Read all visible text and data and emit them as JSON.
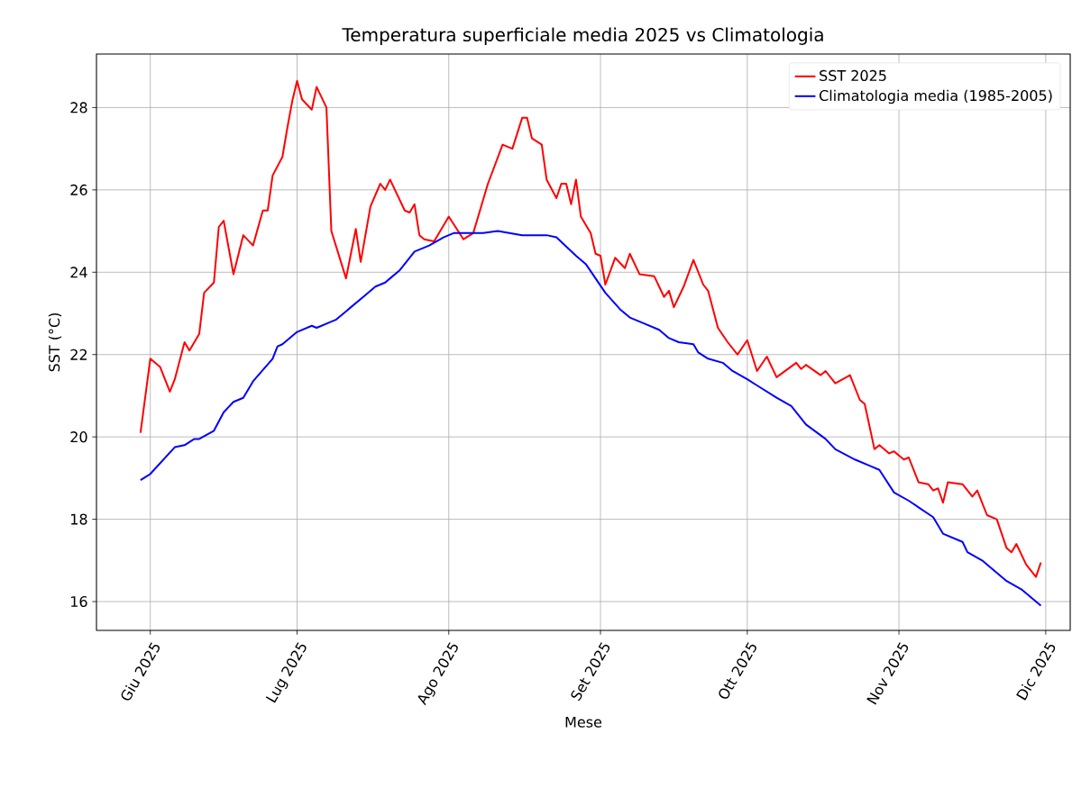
{
  "chart_data": {
    "type": "line",
    "title": "Temperatura superficiale media 2025 vs Climatologia",
    "xlabel": "Mese",
    "ylabel": "SST (°C)",
    "xlim": [
      "2025-05-21",
      "2025-12-06"
    ],
    "ylim": [
      15.3,
      29.3
    ],
    "xticks": [
      {
        "value": "2025-06-01",
        "label": "Giu 2025"
      },
      {
        "value": "2025-07-01",
        "label": "Lug 2025"
      },
      {
        "value": "2025-08-01",
        "label": "Ago 2025"
      },
      {
        "value": "2025-09-01",
        "label": "Set 2025"
      },
      {
        "value": "2025-10-01",
        "label": "Ott 2025"
      },
      {
        "value": "2025-11-01",
        "label": "Nov 2025"
      },
      {
        "value": "2025-12-01",
        "label": "Dic 2025"
      }
    ],
    "yticks": [
      16,
      18,
      20,
      22,
      24,
      26,
      28
    ],
    "grid": true,
    "legend": "top right",
    "series": [
      {
        "name": "SST 2025",
        "color": "#ff0000",
        "x": [
          "2025-05-30",
          "2025-06-01",
          "2025-06-03",
          "2025-06-05",
          "2025-06-06",
          "2025-06-08",
          "2025-06-09",
          "2025-06-11",
          "2025-06-12",
          "2025-06-14",
          "2025-06-15",
          "2025-06-16",
          "2025-06-18",
          "2025-06-20",
          "2025-06-22",
          "2025-06-24",
          "2025-06-25",
          "2025-06-26",
          "2025-06-28",
          "2025-06-29",
          "2025-06-30",
          "2025-07-01",
          "2025-07-02",
          "2025-07-04",
          "2025-07-05",
          "2025-07-07",
          "2025-07-08",
          "2025-07-11",
          "2025-07-13",
          "2025-07-14",
          "2025-07-16",
          "2025-07-18",
          "2025-07-19",
          "2025-07-20",
          "2025-07-23",
          "2025-07-24",
          "2025-07-25",
          "2025-07-26",
          "2025-07-27",
          "2025-07-29",
          "2025-08-01",
          "2025-08-04",
          "2025-08-06",
          "2025-08-09",
          "2025-08-12",
          "2025-08-14",
          "2025-08-16",
          "2025-08-17",
          "2025-08-18",
          "2025-08-20",
          "2025-08-21",
          "2025-08-23",
          "2025-08-24",
          "2025-08-25",
          "2025-08-26",
          "2025-08-27",
          "2025-08-28",
          "2025-08-30",
          "2025-08-31",
          "2025-09-01",
          "2025-09-02",
          "2025-09-04",
          "2025-09-06",
          "2025-09-07",
          "2025-09-09",
          "2025-09-12",
          "2025-09-14",
          "2025-09-15",
          "2025-09-16",
          "2025-09-18",
          "2025-09-20",
          "2025-09-22",
          "2025-09-23",
          "2025-09-25",
          "2025-09-27",
          "2025-09-29",
          "2025-10-01",
          "2025-10-03",
          "2025-10-05",
          "2025-10-07",
          "2025-10-11",
          "2025-10-12",
          "2025-10-13",
          "2025-10-16",
          "2025-10-17",
          "2025-10-19",
          "2025-10-22",
          "2025-10-24",
          "2025-10-25",
          "2025-10-27",
          "2025-10-28",
          "2025-10-30",
          "2025-10-31",
          "2025-11-02",
          "2025-11-03",
          "2025-11-05",
          "2025-11-07",
          "2025-11-08",
          "2025-11-09",
          "2025-11-10",
          "2025-11-11",
          "2025-11-14",
          "2025-11-16",
          "2025-11-17",
          "2025-11-19",
          "2025-11-21",
          "2025-11-23",
          "2025-11-24",
          "2025-11-25",
          "2025-11-27",
          "2025-11-29",
          "2025-11-30"
        ],
        "values": [
          20.1,
          21.9,
          21.7,
          21.1,
          21.4,
          22.3,
          22.1,
          22.5,
          23.5,
          23.75,
          25.1,
          25.25,
          23.95,
          24.9,
          24.65,
          25.5,
          25.5,
          26.35,
          26.8,
          27.5,
          28.15,
          28.65,
          28.2,
          27.95,
          28.5,
          28.0,
          25.0,
          23.85,
          25.05,
          24.25,
          25.6,
          26.15,
          26.0,
          26.25,
          25.5,
          25.45,
          25.65,
          24.9,
          24.8,
          24.75,
          25.35,
          24.8,
          24.95,
          26.15,
          27.1,
          27.0,
          27.75,
          27.75,
          27.25,
          27.1,
          26.25,
          25.8,
          26.15,
          26.15,
          25.65,
          26.25,
          25.35,
          24.95,
          24.45,
          24.4,
          23.7,
          24.35,
          24.1,
          24.45,
          23.95,
          23.9,
          23.4,
          23.55,
          23.15,
          23.65,
          24.3,
          23.7,
          23.55,
          22.65,
          22.3,
          22.0,
          22.35,
          21.6,
          21.95,
          21.45,
          21.8,
          21.65,
          21.75,
          21.5,
          21.6,
          21.3,
          21.5,
          20.9,
          20.8,
          19.7,
          19.8,
          19.6,
          19.65,
          19.45,
          19.5,
          18.9,
          18.85,
          18.7,
          18.75,
          18.4,
          18.9,
          18.85,
          18.55,
          18.7,
          18.1,
          18.0,
          17.3,
          17.2,
          17.4,
          16.9,
          16.6,
          16.95
        ]
      },
      {
        "name": "Climatologia media (1985-2005)",
        "color": "#0000ff",
        "x": [
          "2025-05-30",
          "2025-06-01",
          "2025-06-06",
          "2025-06-08",
          "2025-06-10",
          "2025-06-11",
          "2025-06-14",
          "2025-06-16",
          "2025-06-18",
          "2025-06-20",
          "2025-06-22",
          "2025-06-26",
          "2025-06-27",
          "2025-06-28",
          "2025-07-01",
          "2025-07-04",
          "2025-07-05",
          "2025-07-08",
          "2025-07-09",
          "2025-07-11",
          "2025-07-12",
          "2025-07-15",
          "2025-07-17",
          "2025-07-19",
          "2025-07-20",
          "2025-07-22",
          "2025-07-25",
          "2025-07-28",
          "2025-07-31",
          "2025-08-02",
          "2025-08-05",
          "2025-08-08",
          "2025-08-11",
          "2025-08-16",
          "2025-08-18",
          "2025-08-21",
          "2025-08-23",
          "2025-08-27",
          "2025-08-29",
          "2025-08-31",
          "2025-09-02",
          "2025-09-05",
          "2025-09-07",
          "2025-09-10",
          "2025-09-13",
          "2025-09-15",
          "2025-09-17",
          "2025-09-20",
          "2025-09-21",
          "2025-09-23",
          "2025-09-26",
          "2025-09-28",
          "2025-10-01",
          "2025-10-03",
          "2025-10-07",
          "2025-10-10",
          "2025-10-13",
          "2025-10-17",
          "2025-10-19",
          "2025-10-23",
          "2025-10-26",
          "2025-10-28",
          "2025-10-31",
          "2025-11-03",
          "2025-11-08",
          "2025-11-10",
          "2025-11-14",
          "2025-11-15",
          "2025-11-18",
          "2025-11-23",
          "2025-11-26",
          "2025-11-30"
        ],
        "values": [
          18.95,
          19.1,
          19.75,
          19.8,
          19.95,
          19.95,
          20.15,
          20.6,
          20.85,
          20.95,
          21.35,
          21.9,
          22.2,
          22.25,
          22.55,
          22.7,
          22.65,
          22.8,
          22.85,
          23.05,
          23.15,
          23.45,
          23.65,
          23.75,
          23.85,
          24.05,
          24.5,
          24.65,
          24.85,
          24.95,
          24.95,
          24.95,
          25.0,
          24.9,
          24.9,
          24.9,
          24.85,
          24.4,
          24.2,
          23.85,
          23.5,
          23.1,
          22.9,
          22.75,
          22.6,
          22.4,
          22.3,
          22.25,
          22.05,
          21.9,
          21.8,
          21.6,
          21.4,
          21.25,
          20.95,
          20.75,
          20.3,
          19.95,
          19.7,
          19.45,
          19.3,
          19.2,
          18.65,
          18.45,
          18.05,
          17.65,
          17.45,
          17.2,
          17.0,
          16.5,
          16.3,
          15.9
        ]
      }
    ]
  }
}
